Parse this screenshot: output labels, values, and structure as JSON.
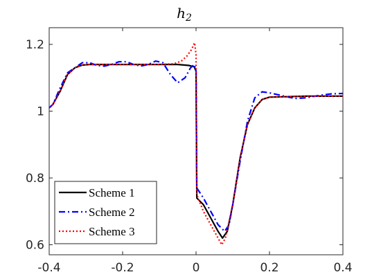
{
  "chart_data": {
    "type": "line",
    "title": "h",
    "title_subscript": "2",
    "xlabel": "",
    "ylabel": "",
    "xlim": [
      -0.4,
      0.4
    ],
    "ylim": [
      0.57,
      1.25
    ],
    "xticks": [
      -0.4,
      -0.2,
      0,
      0.2,
      0.4
    ],
    "xtick_labels": [
      "-0.4",
      "-0.2",
      "0",
      "0.2",
      "0.4"
    ],
    "yticks": [
      0.6,
      0.8,
      1.0,
      1.2
    ],
    "ytick_labels": [
      "0.6",
      "0.8",
      "1",
      "1.2"
    ],
    "grid": false,
    "legend_position": "bottom-left",
    "series": [
      {
        "name": "Scheme 1",
        "color": "#000000",
        "style": "solid",
        "points": [
          [
            -0.4,
            1.01
          ],
          [
            -0.39,
            1.02
          ],
          [
            -0.37,
            1.06
          ],
          [
            -0.35,
            1.11
          ],
          [
            -0.33,
            1.13
          ],
          [
            -0.31,
            1.138
          ],
          [
            -0.29,
            1.14
          ],
          [
            -0.2,
            1.14
          ],
          [
            -0.1,
            1.14
          ],
          [
            -0.05,
            1.14
          ],
          [
            -0.02,
            1.137
          ],
          [
            -0.005,
            1.133
          ],
          [
            0.0,
            1.12
          ],
          [
            0.002,
            0.74
          ],
          [
            0.02,
            0.72
          ],
          [
            0.04,
            0.68
          ],
          [
            0.06,
            0.64
          ],
          [
            0.072,
            0.62
          ],
          [
            0.085,
            0.64
          ],
          [
            0.1,
            0.72
          ],
          [
            0.12,
            0.86
          ],
          [
            0.14,
            0.96
          ],
          [
            0.16,
            1.01
          ],
          [
            0.18,
            1.035
          ],
          [
            0.2,
            1.042
          ],
          [
            0.3,
            1.045
          ],
          [
            0.4,
            1.045
          ]
        ]
      },
      {
        "name": "Scheme 2",
        "color": "#0000ff",
        "style": "dashdot",
        "points": [
          [
            -0.4,
            1.01
          ],
          [
            -0.39,
            1.02
          ],
          [
            -0.37,
            1.07
          ],
          [
            -0.35,
            1.115
          ],
          [
            -0.33,
            1.13
          ],
          [
            -0.31,
            1.145
          ],
          [
            -0.29,
            1.145
          ],
          [
            -0.27,
            1.137
          ],
          [
            -0.25,
            1.135
          ],
          [
            -0.23,
            1.14
          ],
          [
            -0.21,
            1.148
          ],
          [
            -0.19,
            1.148
          ],
          [
            -0.17,
            1.14
          ],
          [
            -0.15,
            1.135
          ],
          [
            -0.13,
            1.14
          ],
          [
            -0.11,
            1.15
          ],
          [
            -0.09,
            1.145
          ],
          [
            -0.07,
            1.11
          ],
          [
            -0.05,
            1.085
          ],
          [
            -0.03,
            1.1
          ],
          [
            -0.015,
            1.13
          ],
          [
            -0.005,
            1.14
          ],
          [
            0.0,
            1.12
          ],
          [
            0.002,
            0.77
          ],
          [
            0.02,
            0.74
          ],
          [
            0.04,
            0.7
          ],
          [
            0.06,
            0.66
          ],
          [
            0.078,
            0.64
          ],
          [
            0.09,
            0.66
          ],
          [
            0.1,
            0.72
          ],
          [
            0.12,
            0.85
          ],
          [
            0.14,
            0.97
          ],
          [
            0.16,
            1.04
          ],
          [
            0.18,
            1.058
          ],
          [
            0.2,
            1.055
          ],
          [
            0.24,
            1.045
          ],
          [
            0.27,
            1.038
          ],
          [
            0.3,
            1.04
          ],
          [
            0.34,
            1.048
          ],
          [
            0.37,
            1.052
          ],
          [
            0.4,
            1.053
          ]
        ]
      },
      {
        "name": "Scheme 3",
        "color": "#ff0000",
        "style": "dotted",
        "points": [
          [
            -0.4,
            1.01
          ],
          [
            -0.39,
            1.02
          ],
          [
            -0.37,
            1.06
          ],
          [
            -0.35,
            1.11
          ],
          [
            -0.33,
            1.13
          ],
          [
            -0.31,
            1.138
          ],
          [
            -0.29,
            1.14
          ],
          [
            -0.2,
            1.14
          ],
          [
            -0.1,
            1.14
          ],
          [
            -0.06,
            1.142
          ],
          [
            -0.04,
            1.15
          ],
          [
            -0.025,
            1.165
          ],
          [
            -0.012,
            1.185
          ],
          [
            -0.004,
            1.205
          ],
          [
            0.0,
            1.17
          ],
          [
            0.002,
            0.75
          ],
          [
            0.02,
            0.7
          ],
          [
            0.04,
            0.66
          ],
          [
            0.06,
            0.62
          ],
          [
            0.07,
            0.6
          ],
          [
            0.08,
            0.62
          ],
          [
            0.1,
            0.72
          ],
          [
            0.12,
            0.86
          ],
          [
            0.14,
            0.96
          ],
          [
            0.16,
            1.01
          ],
          [
            0.18,
            1.035
          ],
          [
            0.2,
            1.042
          ],
          [
            0.3,
            1.045
          ],
          [
            0.4,
            1.045
          ]
        ]
      }
    ]
  }
}
